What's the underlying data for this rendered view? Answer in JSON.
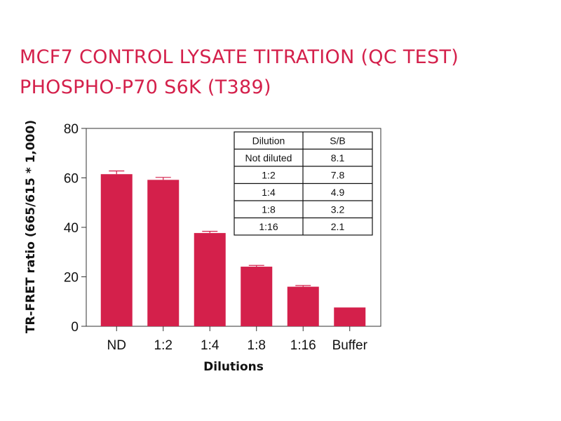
{
  "chart_data": {
    "type": "bar",
    "title": "MCF7 CONTROL LYSATE TITRATION (QC TEST)",
    "subtitle": "PHOSPHO-P70 S6K (T389)",
    "xlabel": "Dilutions",
    "ylabel": "TR-FRET ratio  (665/615 * 1,000)",
    "categories": [
      "ND",
      "1:2",
      "1:4",
      "1:8",
      "1:16",
      "Buffer"
    ],
    "values": [
      61.5,
      59.2,
      37.7,
      24.1,
      16.0,
      7.6
    ],
    "error": [
      1.3,
      1.0,
      0.7,
      0.5,
      0.5,
      0
    ],
    "ylim": [
      0,
      80
    ],
    "yticks": [
      0,
      20,
      40,
      60,
      80
    ],
    "bar_color": "#d4204b",
    "grid": false,
    "inset_table": {
      "headers": [
        "Dilution",
        "S/B"
      ],
      "rows": [
        [
          "Not diluted",
          "8.1"
        ],
        [
          "1:2",
          "7.8"
        ],
        [
          "1:4",
          "4.9"
        ],
        [
          "1:8",
          "3.2"
        ],
        [
          "1:16",
          "2.1"
        ]
      ],
      "placement": "top-right"
    }
  }
}
